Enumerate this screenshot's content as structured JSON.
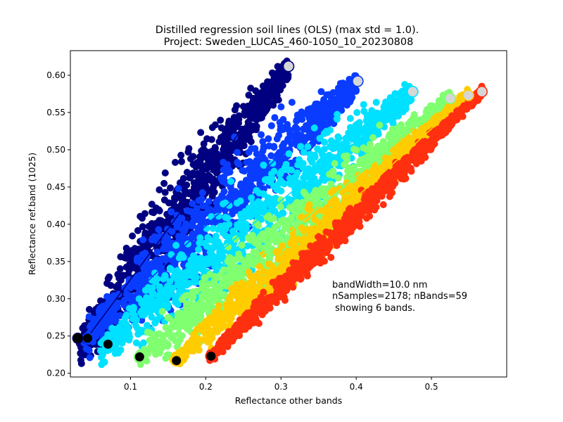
{
  "chart_data": {
    "type": "scatter",
    "title": "Distilled regression soil lines (OLS) (max std = 1.0).",
    "subtitle": "Project: Sweden_LUCAS_460-1050_10_20230808",
    "xlabel": "Reflectance other bands",
    "ylabel": "Reflectance ref.band (1025)",
    "xlim": [
      0.02,
      0.6
    ],
    "ylim": [
      0.195,
      0.633
    ],
    "xticks": [
      0.1,
      0.2,
      0.3,
      0.4,
      0.5
    ],
    "yticks": [
      0.2,
      0.25,
      0.3,
      0.35,
      0.4,
      0.45,
      0.5,
      0.55,
      0.6
    ],
    "xtick_labels": [
      "0.1",
      "0.2",
      "0.3",
      "0.4",
      "0.5"
    ],
    "ytick_labels": [
      "0.20",
      "0.25",
      "0.30",
      "0.35",
      "0.40",
      "0.45",
      "0.50",
      "0.55",
      "0.60"
    ],
    "grid": false,
    "annotation": [
      "bandWidth=10.0 nm",
      "nSamples=2178; nBands=59",
      " showing 6 bands."
    ],
    "series": [
      {
        "color": "#000080",
        "line_start": [
          0.042,
          0.247
        ],
        "line_end": [
          0.31,
          0.612
        ],
        "cloud_width": 0.055,
        "cloud_x_range": [
          0.032,
          0.31
        ]
      },
      {
        "color": "#0a3cff",
        "line_start": [
          0.043,
          0.247
        ],
        "line_end": [
          0.402,
          0.592
        ],
        "cloud_width": 0.055,
        "cloud_x_range": [
          0.038,
          0.4
        ]
      },
      {
        "color": "#00e0ff",
        "line_start": [
          0.07,
          0.239
        ],
        "line_end": [
          0.475,
          0.578
        ],
        "cloud_width": 0.05,
        "cloud_x_range": [
          0.06,
          0.475
        ]
      },
      {
        "color": "#80ff70",
        "line_start": [
          0.112,
          0.222
        ],
        "line_end": [
          0.525,
          0.569
        ],
        "cloud_width": 0.04,
        "cloud_x_range": [
          0.105,
          0.525
        ]
      },
      {
        "color": "#ffcc00",
        "line_start": [
          0.161,
          0.217
        ],
        "line_end": [
          0.549,
          0.573
        ],
        "cloud_width": 0.03,
        "cloud_x_range": [
          0.155,
          0.549
        ]
      },
      {
        "color": "#ff3010",
        "line_start": [
          0.207,
          0.223
        ],
        "line_end": [
          0.567,
          0.578
        ],
        "cloud_width": 0.018,
        "cloud_x_range": [
          0.205,
          0.567
        ]
      }
    ]
  }
}
